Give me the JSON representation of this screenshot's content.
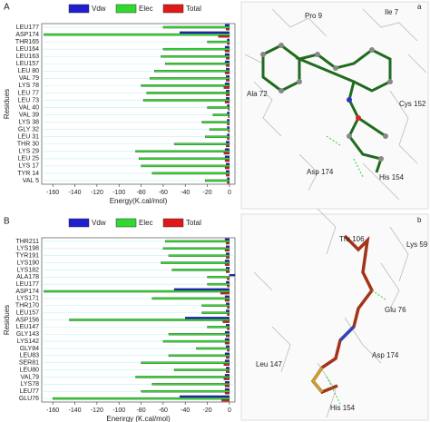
{
  "chart_data": [
    {
      "type": "bar",
      "orientation": "horizontal",
      "panel_label": "A",
      "xlabel": "Energy(K.cal/mol)",
      "ylabel": "Residues",
      "categories": [
        "LEU177",
        "ASP174",
        "THR165",
        "LEU164",
        "LEU163",
        "LEU157",
        "LEU 80",
        "VAL 79",
        "LYS 78",
        "LEU 77",
        "LEU 73",
        "VAL 40",
        "VAL 39",
        "LYS 38",
        "GLY 32",
        "LEU 31",
        "THR 30",
        "LYS 29",
        "LEU 25",
        "LYS 17",
        "TYR 14",
        "VAL 5"
      ],
      "series": [
        {
          "name": "Vdw",
          "color": "#1f1fd0",
          "values": [
            -4,
            -45,
            -2,
            -4,
            -4,
            -4,
            -3,
            -3,
            -4,
            -3,
            -3,
            -2,
            -2,
            -2,
            -2,
            -2,
            -3,
            -4,
            -4,
            -3,
            -3,
            -2
          ]
        },
        {
          "name": "Elec",
          "color": "#2fd92f",
          "values": [
            -60,
            -168,
            -20,
            -60,
            -62,
            -58,
            -68,
            -72,
            -80,
            -75,
            -78,
            -20,
            -15,
            -25,
            -18,
            -22,
            -50,
            -85,
            -82,
            -80,
            -70,
            -22
          ]
        },
        {
          "name": "Total",
          "color": "#e01818",
          "values": [
            -3,
            -10,
            -2,
            -4,
            -3,
            -3,
            -4,
            -3,
            -5,
            -3,
            -4,
            -1,
            -1,
            -2,
            -1,
            -2,
            -3,
            -5,
            -4,
            -4,
            -3,
            -2
          ]
        }
      ],
      "xlim": [
        -170,
        5
      ],
      "xticks": [
        -160,
        -140,
        -120,
        -100,
        -80,
        -60,
        -40,
        -20,
        0
      ]
    },
    {
      "type": "bar",
      "orientation": "horizontal",
      "panel_label": "B",
      "xlabel": "Enenrgy (K.cal/mol)",
      "ylabel": "Residues",
      "categories": [
        "THR211",
        "LYS198",
        "TYR191",
        "LYS190",
        "LYS182",
        "ALA178",
        "LEU177",
        "ASP174",
        "LYS171",
        "THR170",
        "LEU157",
        "ASP156",
        "LEU147",
        "GLY143",
        "LYS142",
        "GLY84",
        "LEU83",
        "SER81",
        "LEU80",
        "VAL79",
        "LYS78",
        "LEU77",
        "GLU76"
      ],
      "series": [
        {
          "name": "Vdw",
          "color": "#1f1fd0",
          "values": [
            -4,
            -3,
            -3,
            -4,
            -3,
            5,
            -3,
            -50,
            -4,
            -3,
            -3,
            -40,
            -3,
            -4,
            -4,
            -3,
            -4,
            -4,
            -3,
            -4,
            -4,
            -4,
            -45
          ]
        },
        {
          "name": "Elec",
          "color": "#2fd92f",
          "values": [
            -58,
            -60,
            -55,
            -62,
            -52,
            -20,
            -20,
            -168,
            -70,
            -25,
            -25,
            -145,
            -20,
            -55,
            -60,
            -30,
            -55,
            -80,
            -50,
            -85,
            -70,
            -80,
            -160
          ]
        },
        {
          "name": "Total",
          "color": "#e01818",
          "values": [
            -3,
            -4,
            -3,
            -4,
            -3,
            -2,
            -2,
            -8,
            -4,
            -2,
            -2,
            -6,
            -2,
            -3,
            -4,
            -2,
            -3,
            -5,
            -3,
            -5,
            -4,
            -4,
            -7
          ]
        }
      ],
      "xlim": [
        -170,
        5
      ],
      "xticks": [
        -160,
        -140,
        -120,
        -100,
        -80,
        -60,
        -40,
        -20,
        0
      ]
    }
  ],
  "structures": [
    {
      "panel_label": "a",
      "residues": [
        "Pro 9",
        "Ile 7",
        "Ala 72",
        "Cys 152",
        "Asp 174",
        "His 154"
      ]
    },
    {
      "panel_label": "b",
      "residues": [
        "Thr 106",
        "Lys 59",
        "Glu 76",
        "Asp 174",
        "Leu 147",
        "His 154"
      ]
    }
  ]
}
